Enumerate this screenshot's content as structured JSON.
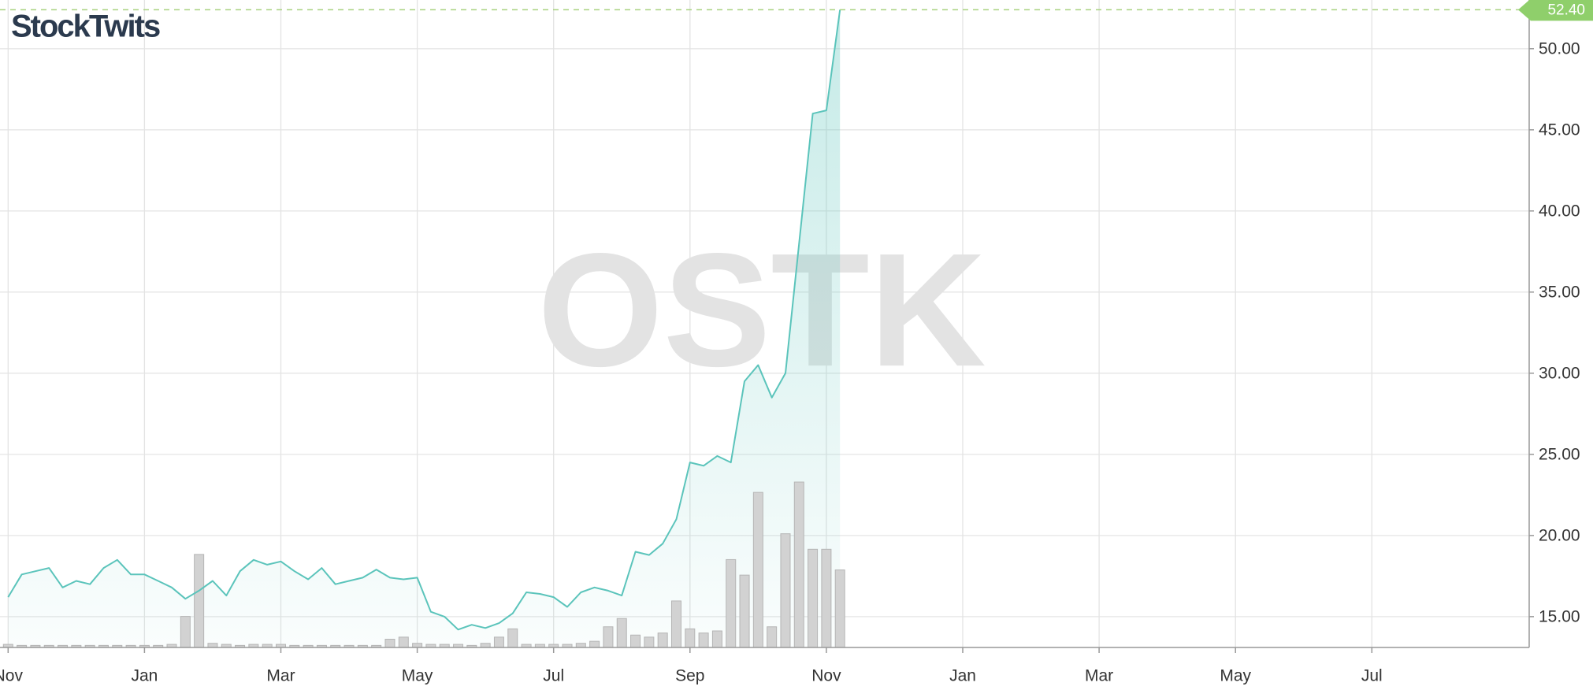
{
  "chart_data": {
    "type": "line",
    "brand": "StockTwits",
    "watermark": "OSTK",
    "color": "#5bc4bb",
    "volume_color": "#d2d2d2",
    "categories": [
      "Nov",
      null,
      null,
      null,
      null,
      null,
      null,
      null,
      null,
      null,
      "Jan",
      null,
      null,
      null,
      null,
      null,
      null,
      null,
      null,
      null,
      "Mar",
      null,
      null,
      null,
      null,
      null,
      null,
      null,
      null,
      null,
      "May",
      null,
      null,
      null,
      null,
      null,
      null,
      null,
      null,
      null,
      "Jul",
      null,
      null,
      null,
      null,
      null,
      null,
      null,
      null,
      null,
      "Sep",
      null,
      null,
      null,
      null,
      null,
      null,
      null,
      null,
      null,
      "Nov",
      null,
      null,
      null,
      null,
      null,
      null,
      null,
      null,
      null,
      "Jan",
      null,
      null,
      null,
      null,
      null,
      null,
      null,
      null,
      null,
      "Mar",
      null,
      null,
      null,
      null,
      null,
      null,
      null,
      null,
      null,
      "May",
      null,
      null,
      null,
      null,
      null,
      null,
      null,
      null,
      null,
      "Jul",
      null,
      null,
      null,
      null,
      null,
      null,
      null,
      null,
      null,
      null,
      null
    ],
    "values": [
      16.2,
      17.6,
      17.8,
      18.0,
      16.8,
      17.2,
      17.0,
      18.0,
      18.5,
      17.6,
      17.6,
      17.2,
      16.8,
      16.1,
      16.6,
      17.2,
      16.3,
      17.8,
      18.5,
      18.2,
      18.4,
      17.8,
      17.3,
      18.0,
      17.0,
      17.2,
      17.4,
      17.9,
      17.4,
      17.3,
      17.4,
      15.3,
      15.0,
      14.2,
      14.5,
      14.3,
      14.6,
      15.2,
      16.5,
      16.4,
      16.2,
      15.6,
      16.5,
      16.8,
      16.6,
      16.3,
      19.0,
      18.8,
      19.5,
      21.0,
      24.5,
      24.3,
      24.9,
      24.5,
      29.5,
      30.5,
      28.5,
      30.0,
      38.0,
      46.0,
      46.2,
      52.4,
      null,
      null,
      null,
      null,
      null,
      null,
      null,
      null,
      null,
      null,
      null,
      null,
      null,
      null,
      null,
      null,
      null,
      null,
      null,
      null,
      null,
      null,
      null,
      null,
      null,
      null,
      null,
      null,
      null,
      null,
      null,
      null,
      null,
      null,
      null,
      null,
      null,
      null,
      null,
      null,
      null,
      null,
      null,
      null,
      null,
      null,
      null,
      null,
      null,
      null
    ],
    "volume": [
      3,
      2,
      2,
      2,
      2,
      2,
      2,
      2,
      2,
      2,
      2,
      2,
      3,
      30,
      90,
      4,
      3,
      2,
      3,
      3,
      3,
      2,
      2,
      2,
      2,
      2,
      2,
      2,
      8,
      10,
      4,
      3,
      3,
      3,
      2,
      4,
      10,
      18,
      3,
      3,
      3,
      3,
      4,
      6,
      20,
      28,
      12,
      10,
      14,
      45,
      18,
      14,
      16,
      85,
      70,
      150,
      20,
      110,
      160,
      95,
      95,
      75,
      null,
      null,
      null,
      null,
      null,
      null,
      null,
      null,
      null,
      null,
      null,
      null,
      null,
      null,
      null,
      null,
      null,
      null,
      null,
      null,
      null,
      null,
      null,
      null,
      null,
      null,
      null,
      null,
      null,
      null,
      null,
      null,
      null,
      null,
      null,
      null,
      null,
      null,
      null,
      null,
      null,
      null,
      null,
      null,
      null,
      null,
      null,
      null,
      null,
      null
    ],
    "ylim": [
      13.1,
      53
    ],
    "yticks": [
      {
        "value": 15,
        "label": "15.00"
      },
      {
        "value": 20,
        "label": "20.00"
      },
      {
        "value": 25,
        "label": "25.00"
      },
      {
        "value": 30,
        "label": "30.00"
      },
      {
        "value": 35,
        "label": "35.00"
      },
      {
        "value": 40,
        "label": "40.00"
      },
      {
        "value": 45,
        "label": "45.00"
      },
      {
        "value": 50,
        "label": "50.00"
      }
    ],
    "last_price": {
      "value": 52.4,
      "label": "52.40"
    },
    "grid": true
  }
}
